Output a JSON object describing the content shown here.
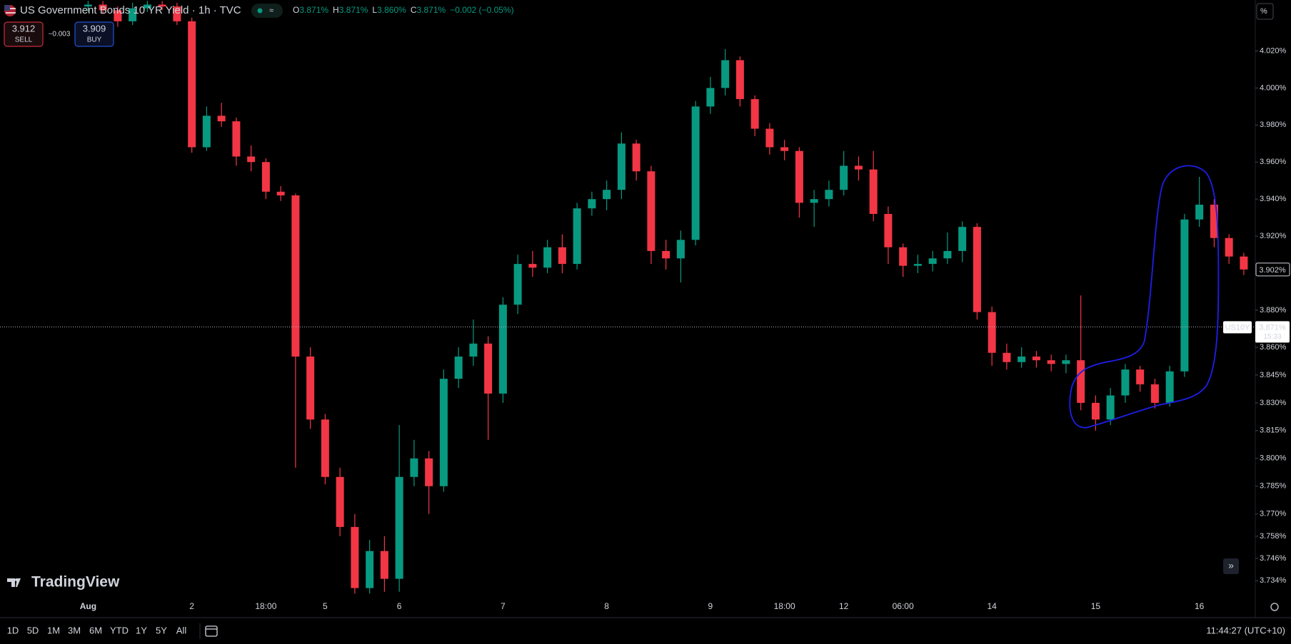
{
  "header": {
    "symbol_title": "US Government Bonds 10 YR Yield · 1h · TVC",
    "ohlc": [
      {
        "key": "O",
        "value": "3.871%"
      },
      {
        "key": "H",
        "value": "3.871%"
      },
      {
        "key": "L",
        "value": "3.860%"
      },
      {
        "key": "C",
        "value": "3.871%"
      }
    ],
    "change": "−0.002 (−0.05%)"
  },
  "trade": {
    "sell_price": "3.912",
    "sell_label": "SELL",
    "spread": "−0.003",
    "buy_price": "3.909",
    "buy_label": "BUY"
  },
  "scale_mode": "%",
  "logo": "TradingView",
  "chart_data": {
    "type": "candlestick",
    "categories": [
      "Aug",
      null,
      null,
      null,
      null,
      null,
      null,
      "2",
      null,
      null,
      null,
      null,
      "18:00",
      null,
      null,
      null,
      "5",
      null,
      null,
      null,
      null,
      "6",
      null,
      null,
      null,
      null,
      null,
      null,
      "7",
      null,
      null,
      null,
      null,
      null,
      null,
      "8",
      null,
      null,
      null,
      null,
      null,
      null,
      "9",
      null,
      null,
      null,
      null,
      "18:00",
      null,
      null,
      null,
      "12",
      null,
      null,
      null,
      "06:00",
      null,
      null,
      null,
      null,
      null,
      "14",
      null,
      null,
      null,
      null,
      null,
      null,
      "15",
      null,
      null,
      null,
      null,
      null,
      null,
      "16",
      null,
      null,
      null
    ],
    "open": [
      4.044,
      4.045,
      4.042,
      4.036,
      4.043,
      4.045,
      4.044,
      4.036,
      3.968,
      3.985,
      3.982,
      3.963,
      3.96,
      3.944,
      3.942,
      3.855,
      3.821,
      3.79,
      3.763,
      3.73,
      3.75,
      3.735,
      3.79,
      3.8,
      3.785,
      3.843,
      3.855,
      3.862,
      3.835,
      3.883,
      3.905,
      3.903,
      3.914,
      3.905,
      3.935,
      3.94,
      3.945,
      3.97,
      3.955,
      3.912,
      3.908,
      3.918,
      3.99,
      4.0,
      4.015,
      3.994,
      3.978,
      3.968,
      3.966,
      3.938,
      3.94,
      3.945,
      3.958,
      3.956,
      3.932,
      3.914,
      3.904,
      3.905,
      3.908,
      3.912,
      3.925,
      3.879,
      3.857,
      3.852,
      3.855,
      3.853,
      3.851,
      3.853,
      3.83,
      3.821,
      3.834,
      3.848,
      3.84,
      3.83,
      3.847,
      3.929,
      3.937,
      3.919,
      3.909
    ],
    "high": [
      4.047,
      4.047,
      4.044,
      4.046,
      4.047,
      4.047,
      4.046,
      4.038,
      3.99,
      3.992,
      3.984,
      3.969,
      3.962,
      3.947,
      3.943,
      3.86,
      3.824,
      3.795,
      3.77,
      3.756,
      3.758,
      3.818,
      3.81,
      3.804,
      3.848,
      3.86,
      3.875,
      3.866,
      3.887,
      3.91,
      3.912,
      3.918,
      3.921,
      3.938,
      3.944,
      3.95,
      3.976,
      3.972,
      3.958,
      3.918,
      3.923,
      3.993,
      4.006,
      4.021,
      4.017,
      3.996,
      3.981,
      3.972,
      3.968,
      3.945,
      3.95,
      3.966,
      3.963,
      3.966,
      3.936,
      3.916,
      3.91,
      3.912,
      3.922,
      3.928,
      3.927,
      3.882,
      3.862,
      3.86,
      3.858,
      3.856,
      3.856,
      3.888,
      3.834,
      3.838,
      3.851,
      3.85,
      3.843,
      3.85,
      3.932,
      3.952,
      3.94,
      3.921,
      3.911
    ],
    "low": [
      4.041,
      4.04,
      4.033,
      4.034,
      4.041,
      4.042,
      4.034,
      3.965,
      3.966,
      3.979,
      3.958,
      3.955,
      3.94,
      3.939,
      3.795,
      3.816,
      3.786,
      3.758,
      3.727,
      3.727,
      3.728,
      3.728,
      3.785,
      3.77,
      3.782,
      3.838,
      3.85,
      3.81,
      3.83,
      3.878,
      3.898,
      3.9,
      3.9,
      3.902,
      3.931,
      3.934,
      3.94,
      3.95,
      3.905,
      3.902,
      3.895,
      3.915,
      3.986,
      3.996,
      3.99,
      3.974,
      3.964,
      3.961,
      3.93,
      3.925,
      3.936,
      3.942,
      3.95,
      3.928,
      3.905,
      3.898,
      3.9,
      3.901,
      3.905,
      3.906,
      3.875,
      3.85,
      3.848,
      3.849,
      3.849,
      3.847,
      3.846,
      3.826,
      3.815,
      3.818,
      3.83,
      3.836,
      3.827,
      3.828,
      3.844,
      3.925,
      3.914,
      3.905,
      3.899
    ],
    "close": [
      4.045,
      4.042,
      4.036,
      4.043,
      4.045,
      4.044,
      4.036,
      3.968,
      3.985,
      3.982,
      3.963,
      3.96,
      3.944,
      3.942,
      3.855,
      3.821,
      3.79,
      3.763,
      3.73,
      3.75,
      3.735,
      3.79,
      3.8,
      3.785,
      3.843,
      3.855,
      3.862,
      3.835,
      3.883,
      3.905,
      3.903,
      3.914,
      3.905,
      3.935,
      3.94,
      3.945,
      3.97,
      3.955,
      3.912,
      3.908,
      3.918,
      3.99,
      4.0,
      4.015,
      3.994,
      3.978,
      3.968,
      3.966,
      3.938,
      3.94,
      3.945,
      3.958,
      3.956,
      3.932,
      3.914,
      3.904,
      3.905,
      3.908,
      3.912,
      3.925,
      3.879,
      3.857,
      3.852,
      3.855,
      3.853,
      3.851,
      3.853,
      3.83,
      3.821,
      3.834,
      3.848,
      3.84,
      3.83,
      3.847,
      3.929,
      3.937,
      3.919,
      3.909,
      3.902
    ],
    "up_color": "#089981",
    "down_color": "#f23645",
    "ylim": [
      3.7256,
      4.0475
    ],
    "yticks": [
      {
        "value": 4.02,
        "label": "4.020%"
      },
      {
        "value": 4.0,
        "label": "4.000%"
      },
      {
        "value": 3.98,
        "label": "3.980%"
      },
      {
        "value": 3.96,
        "label": "3.960%"
      },
      {
        "value": 3.94,
        "label": "3.940%"
      },
      {
        "value": 3.92,
        "label": "3.920%"
      },
      {
        "value": 3.88,
        "label": "3.880%"
      },
      {
        "value": 3.86,
        "label": "3.860%"
      },
      {
        "value": 3.845,
        "label": "3.845%"
      },
      {
        "value": 3.83,
        "label": "3.830%"
      },
      {
        "value": 3.815,
        "label": "3.815%"
      },
      {
        "value": 3.8,
        "label": "3.800%"
      },
      {
        "value": 3.785,
        "label": "3.785%"
      },
      {
        "value": 3.77,
        "label": "3.770%"
      },
      {
        "value": 3.758,
        "label": "3.758%"
      },
      {
        "value": 3.746,
        "label": "3.746%"
      },
      {
        "value": 3.734,
        "label": "3.734%"
      }
    ],
    "grid": false,
    "price_line": {
      "value": 3.871,
      "label": "US10Y",
      "value_label": "3.871%",
      "countdown": "15:33"
    },
    "last_price": {
      "value": 3.902,
      "label": "3.902%"
    }
  },
  "toolbar": {
    "ranges": [
      "1D",
      "5D",
      "1M",
      "3M",
      "6M",
      "YTD",
      "1Y",
      "5Y",
      "All"
    ],
    "clock": "11:44:27 (UTC+10)"
  }
}
